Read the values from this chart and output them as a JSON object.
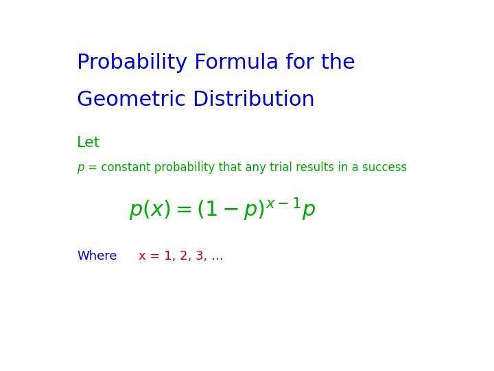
{
  "title_line1": "Probability Formula for the",
  "title_line2": "Geometric Distribution",
  "title_color": "#0000CC",
  "title_fontsize": 22,
  "title_font": "Comic Sans MS",
  "let_text": "Let",
  "let_color": "#00AA00",
  "let_fontsize": 16,
  "let_font": "Comic Sans MS",
  "desc_text_italic": "p",
  "desc_text_rest": " = constant probability that any trial results in a success",
  "desc_color": "#00AA00",
  "desc_fontsize": 12,
  "desc_font": "Comic Sans MS",
  "formula_color": "#00AA00",
  "formula_fontsize": 22,
  "where_text": "Where",
  "where_color": "#0000CC",
  "where_fontsize": 13,
  "where_font": "Comic Sans MS",
  "xval_text": "x = 1, 2, 3, …",
  "xval_color": "#CC0000",
  "xval_fontsize": 13,
  "xval_font": "Comic Sans MS",
  "bg_color": "#FFFFFF"
}
